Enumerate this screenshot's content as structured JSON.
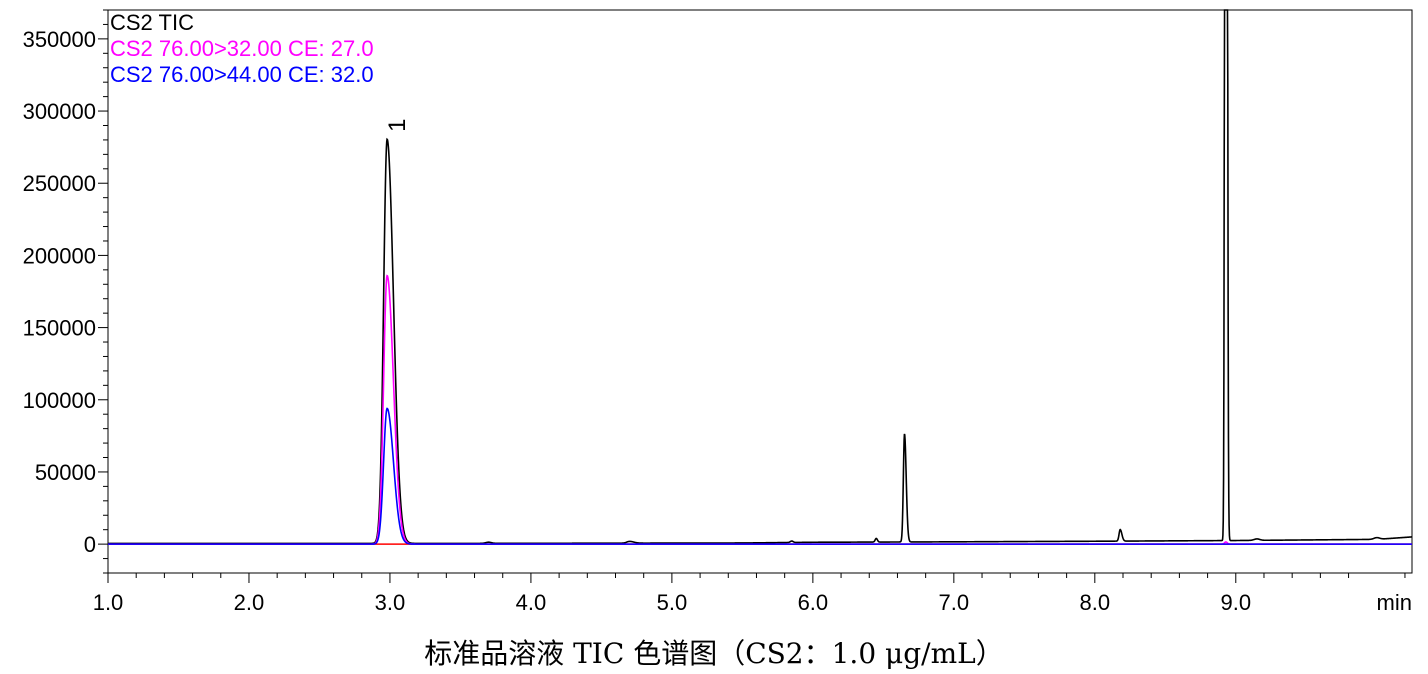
{
  "caption": "标准品溶液 TIC 色谱图（CS2：1.0 μg/mL）",
  "chart_data": {
    "type": "line",
    "xlabel": "min",
    "ylabel": "",
    "xlim": [
      1.0,
      10.25
    ],
    "ylim": [
      -20000,
      370000
    ],
    "x_ticks": [
      1.0,
      2.0,
      3.0,
      4.0,
      5.0,
      6.0,
      7.0,
      8.0,
      9.0
    ],
    "x_tick_labels": [
      "1.0",
      "2.0",
      "3.0",
      "4.0",
      "5.0",
      "6.0",
      "7.0",
      "8.0",
      "9.0"
    ],
    "y_ticks": [
      0,
      50000,
      100000,
      150000,
      200000,
      250000,
      300000,
      350000
    ],
    "y_tick_labels": [
      "0",
      "50000",
      "100000",
      "150000",
      "200000",
      "250000",
      "300000",
      "350000"
    ],
    "legend_position": "top-left",
    "grid": false,
    "peak_labels": [
      {
        "x": 2.98,
        "y": 280000,
        "text": "1"
      }
    ],
    "series": [
      {
        "name": "CS2 TIC",
        "color": "#000000",
        "baseline": [
          [
            1.0,
            500
          ],
          [
            3.5,
            500
          ],
          [
            5.5,
            800
          ],
          [
            6.0,
            1300
          ],
          [
            7.0,
            1600
          ],
          [
            8.0,
            2000
          ],
          [
            9.0,
            2500
          ],
          [
            10.0,
            3300
          ],
          [
            10.25,
            5000
          ]
        ],
        "peaks": [
          {
            "rt": 2.98,
            "height": 280000,
            "sigma_left": 0.025,
            "sigma_right": 0.045
          },
          {
            "rt": 3.7,
            "height": 800,
            "sigma_left": 0.02,
            "sigma_right": 0.02
          },
          {
            "rt": 4.7,
            "height": 1200,
            "sigma_left": 0.02,
            "sigma_right": 0.03
          },
          {
            "rt": 5.85,
            "height": 1000,
            "sigma_left": 0.01,
            "sigma_right": 0.01
          },
          {
            "rt": 6.45,
            "height": 2500,
            "sigma_left": 0.008,
            "sigma_right": 0.008
          },
          {
            "rt": 6.65,
            "height": 75000,
            "sigma_left": 0.008,
            "sigma_right": 0.012
          },
          {
            "rt": 8.18,
            "height": 8000,
            "sigma_left": 0.008,
            "sigma_right": 0.012
          },
          {
            "rt": 8.93,
            "height": 2000000,
            "sigma_left": 0.006,
            "sigma_right": 0.007
          },
          {
            "rt": 9.15,
            "height": 1000,
            "sigma_left": 0.02,
            "sigma_right": 0.02
          },
          {
            "rt": 10.0,
            "height": 1200,
            "sigma_left": 0.02,
            "sigma_right": 0.02
          }
        ]
      },
      {
        "name": "CS2 76.00>32.00 CE: 27.0",
        "color": "#ff00ff",
        "baseline": [
          [
            1.0,
            0
          ],
          [
            10.25,
            0
          ]
        ],
        "peaks": [
          {
            "rt": 2.98,
            "height": 186000,
            "sigma_left": 0.025,
            "sigma_right": 0.045
          },
          {
            "rt": 8.93,
            "height": 1500,
            "sigma_left": 0.01,
            "sigma_right": 0.01
          }
        ]
      },
      {
        "name": "CS2 76.00>44.00 CE: 32.0",
        "color": "#0000ff",
        "baseline": [
          [
            1.0,
            0
          ],
          [
            10.25,
            0
          ]
        ],
        "peaks": [
          {
            "rt": 2.98,
            "height": 94000,
            "sigma_left": 0.025,
            "sigma_right": 0.045
          }
        ]
      },
      {
        "name": "",
        "color": "#ff0000",
        "baseline": [
          [
            1.0,
            0
          ],
          [
            10.25,
            0
          ]
        ],
        "peaks": []
      }
    ]
  }
}
